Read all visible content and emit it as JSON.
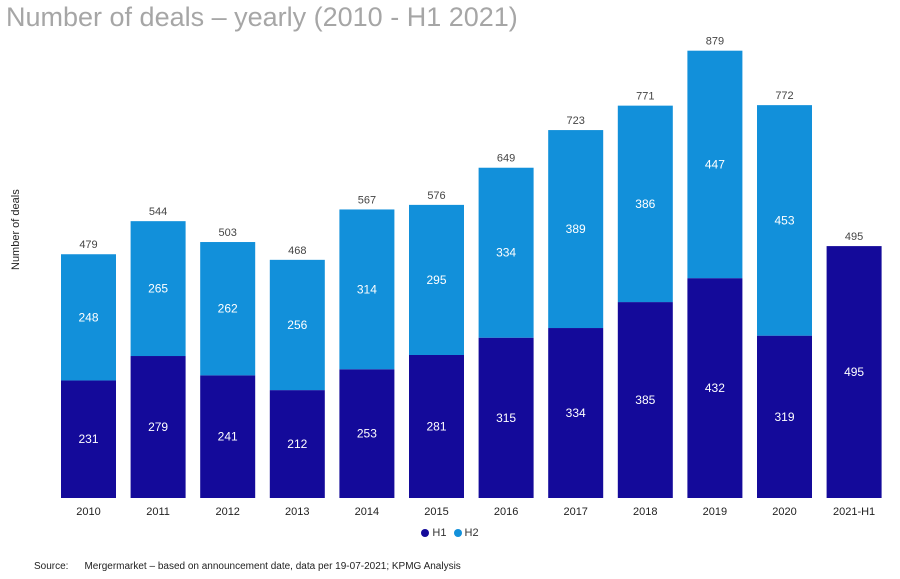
{
  "colors": {
    "h1": "#140a9a",
    "h2": "#1290da",
    "title": "#a6a6a6"
  },
  "chart_data": {
    "type": "bar",
    "stacked": true,
    "title": "Number of deals – yearly (2010 - H1 2021)",
    "ylabel": "Number of deals",
    "categories": [
      "2010",
      "2011",
      "2012",
      "2013",
      "2014",
      "2015",
      "2016",
      "2017",
      "2018",
      "2019",
      "2020",
      "2021-H1"
    ],
    "series": [
      {
        "name": "H1",
        "color": "#140a9a",
        "values": [
          231,
          279,
          241,
          212,
          253,
          281,
          315,
          334,
          385,
          432,
          319,
          495
        ]
      },
      {
        "name": "H2",
        "color": "#1290da",
        "values": [
          248,
          265,
          262,
          256,
          314,
          295,
          334,
          389,
          386,
          447,
          453,
          0
        ]
      }
    ],
    "totals": [
      479,
      544,
      503,
      468,
      567,
      576,
      649,
      723,
      771,
      879,
      772,
      495
    ],
    "ylim": [
      0,
      900
    ],
    "grid": false,
    "legend": "bottom-center"
  },
  "source": {
    "label": "Source:",
    "text": "Mergermarket – based on announcement date, data per 19-07-2021; KPMG Analysis"
  }
}
